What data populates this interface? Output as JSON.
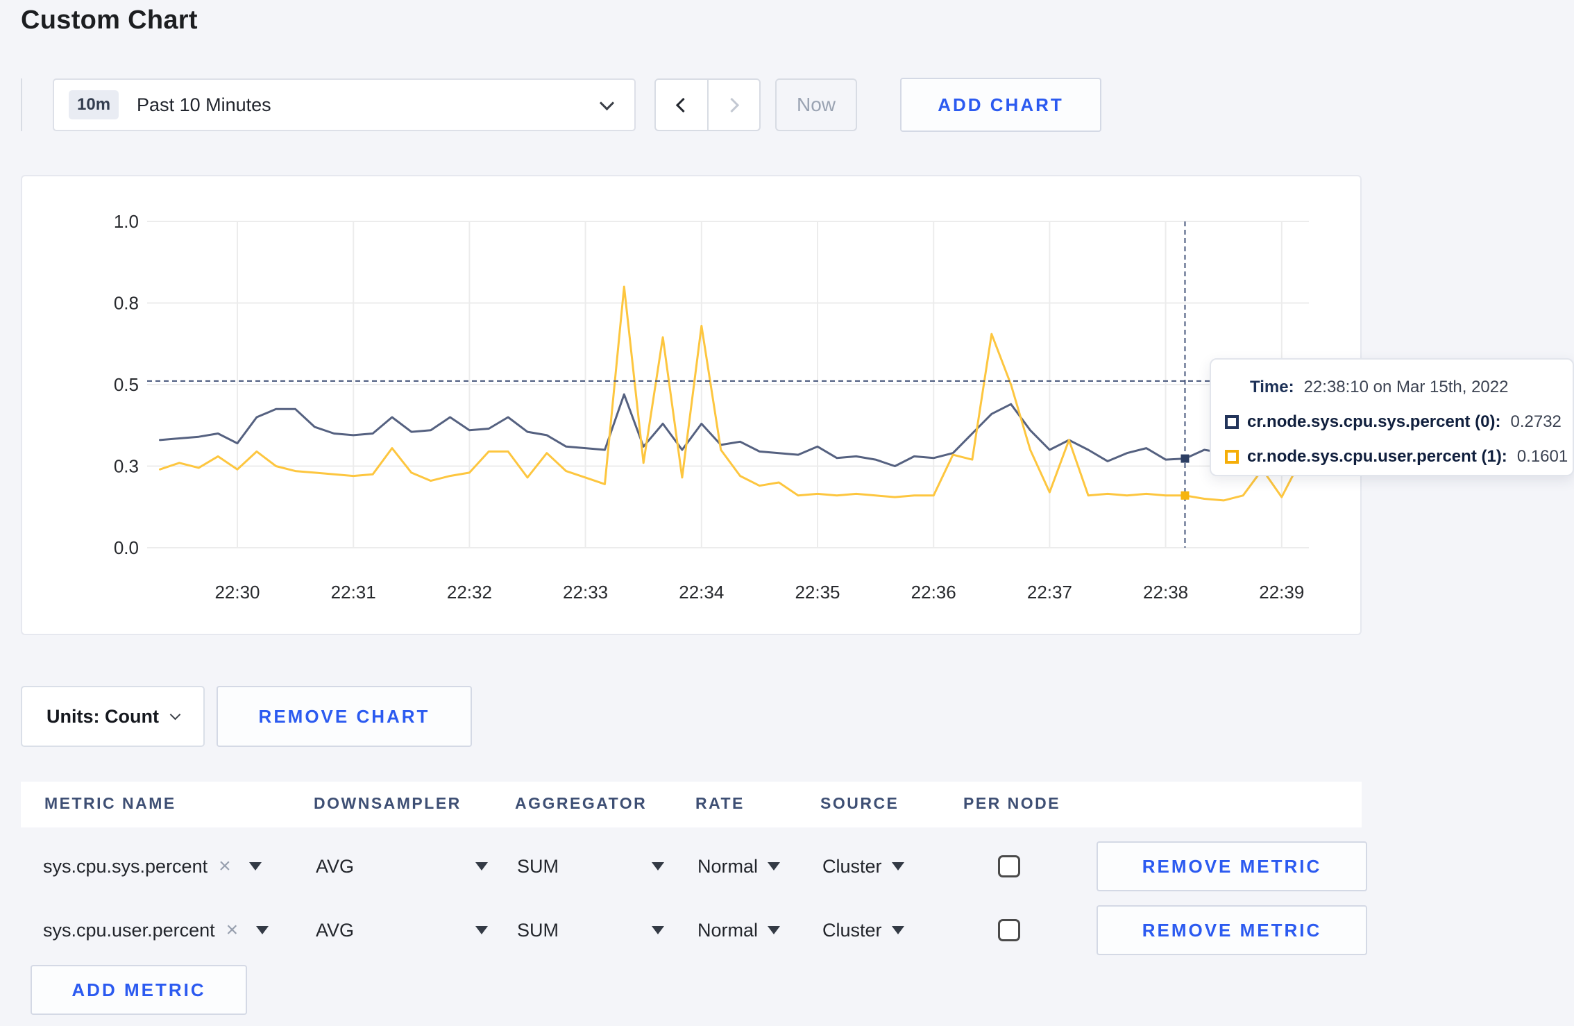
{
  "page": {
    "title": "Custom Chart",
    "background": "#f4f5f9",
    "accent_blue": "#2b5af0"
  },
  "toolbar": {
    "time_selector": {
      "badge": "10m",
      "label": "Past 10 Minutes"
    },
    "now_button": "Now",
    "add_chart_button": "ADD CHART"
  },
  "tooltip": {
    "time_label": "Time:",
    "time_value": "22:38:10 on Mar 15th, 2022",
    "rows": [
      {
        "label": "cr.node.sys.cpu.sys.percent (0):",
        "value": "0.2732",
        "color": "#22345a"
      },
      {
        "label": "cr.node.sys.cpu.user.percent (1):",
        "value": "0.1601",
        "color": "#f5ae08"
      }
    ]
  },
  "units_bar": {
    "units_label": "Units: Count",
    "remove_chart_label": "REMOVE CHART"
  },
  "metrics_table": {
    "headers": [
      "METRIC NAME",
      "DOWNSAMPLER",
      "AGGREGATOR",
      "RATE",
      "SOURCE",
      "PER NODE"
    ],
    "rows": [
      {
        "metric": "sys.cpu.sys.percent",
        "downsampler": "AVG",
        "aggregator": "SUM",
        "rate": "Normal",
        "source": "Cluster",
        "per_node_checked": false,
        "remove_label": "REMOVE METRIC"
      },
      {
        "metric": "sys.cpu.user.percent",
        "downsampler": "AVG",
        "aggregator": "SUM",
        "rate": "Normal",
        "source": "Cluster",
        "per_node_checked": false,
        "remove_label": "REMOVE METRIC"
      }
    ],
    "add_metric_label": "ADD METRIC"
  },
  "icons": {
    "clear": "×"
  },
  "chart_data": {
    "type": "line",
    "title": "",
    "xlabel": "",
    "ylabel": "",
    "grid": true,
    "x": [
      "22:29:20",
      "22:29:30",
      "22:29:40",
      "22:29:50",
      "22:30:00",
      "22:30:10",
      "22:30:20",
      "22:30:30",
      "22:30:40",
      "22:30:50",
      "22:31:00",
      "22:31:10",
      "22:31:20",
      "22:31:30",
      "22:31:40",
      "22:31:50",
      "22:32:00",
      "22:32:10",
      "22:32:20",
      "22:32:30",
      "22:32:40",
      "22:32:50",
      "22:33:00",
      "22:33:10",
      "22:33:20",
      "22:33:30",
      "22:33:40",
      "22:33:50",
      "22:34:00",
      "22:34:10",
      "22:34:20",
      "22:34:30",
      "22:34:40",
      "22:34:50",
      "22:35:00",
      "22:35:10",
      "22:35:20",
      "22:35:30",
      "22:35:40",
      "22:35:50",
      "22:36:00",
      "22:36:10",
      "22:36:20",
      "22:36:30",
      "22:36:40",
      "22:36:50",
      "22:37:00",
      "22:37:10",
      "22:37:20",
      "22:37:30",
      "22:37:40",
      "22:37:50",
      "22:38:00",
      "22:38:10",
      "22:38:20",
      "22:38:30",
      "22:38:40",
      "22:38:50",
      "22:39:00",
      "22:39:10"
    ],
    "series": [
      {
        "name": "cr.node.sys.cpu.sys.percent (0)",
        "color": "#556180",
        "values": [
          0.33,
          0.335,
          0.34,
          0.35,
          0.32,
          0.4,
          0.425,
          0.425,
          0.37,
          0.35,
          0.345,
          0.35,
          0.4,
          0.355,
          0.36,
          0.4,
          0.36,
          0.365,
          0.4,
          0.355,
          0.345,
          0.31,
          0.305,
          0.3,
          0.47,
          0.31,
          0.38,
          0.3,
          0.38,
          0.315,
          0.325,
          0.295,
          0.29,
          0.285,
          0.31,
          0.275,
          0.28,
          0.27,
          0.25,
          0.28,
          0.275,
          0.29,
          0.35,
          0.41,
          0.44,
          0.36,
          0.3,
          0.33,
          0.3,
          0.265,
          0.29,
          0.305,
          0.27,
          0.2732,
          0.3,
          0.29,
          0.3,
          0.295,
          0.3,
          0.31
        ]
      },
      {
        "name": "cr.node.sys.cpu.user.percent (1)",
        "color": "#fdc63f",
        "values": [
          0.24,
          0.26,
          0.245,
          0.28,
          0.24,
          0.295,
          0.25,
          0.235,
          0.23,
          0.225,
          0.22,
          0.225,
          0.305,
          0.23,
          0.205,
          0.22,
          0.23,
          0.295,
          0.295,
          0.215,
          0.29,
          0.235,
          0.215,
          0.195,
          0.8,
          0.26,
          0.645,
          0.215,
          0.68,
          0.3,
          0.22,
          0.19,
          0.2,
          0.16,
          0.165,
          0.16,
          0.165,
          0.16,
          0.155,
          0.16,
          0.16,
          0.285,
          0.27,
          0.655,
          0.5,
          0.3,
          0.17,
          0.33,
          0.16,
          0.165,
          0.16,
          0.165,
          0.16,
          0.1601,
          0.15,
          0.145,
          0.16,
          0.24,
          0.155,
          0.27
        ]
      }
    ],
    "x_axis": {
      "ticks": [
        "22:30",
        "22:31",
        "22:32",
        "22:33",
        "22:34",
        "22:35",
        "22:36",
        "22:37",
        "22:38",
        "22:39"
      ]
    },
    "y_axis": {
      "range": [
        0,
        1
      ],
      "ticks": [
        {
          "label": "0.0",
          "value": 0.0
        },
        {
          "label": "0.3",
          "value": 0.25
        },
        {
          "label": "0.5",
          "value": 0.5
        },
        {
          "label": "0.8",
          "value": 0.75
        },
        {
          "label": "1.0",
          "value": 1.0
        }
      ]
    },
    "legend": "none",
    "crosshair": {
      "time": "22:38:10",
      "hover_value": 0.511,
      "points": [
        {
          "series": "cr.node.sys.cpu.sys.percent (0)",
          "value": 0.2732,
          "color": "#2c3e63"
        },
        {
          "series": "cr.node.sys.cpu.user.percent (1)",
          "value": 0.1601,
          "color": "#f6b40e"
        }
      ]
    }
  }
}
